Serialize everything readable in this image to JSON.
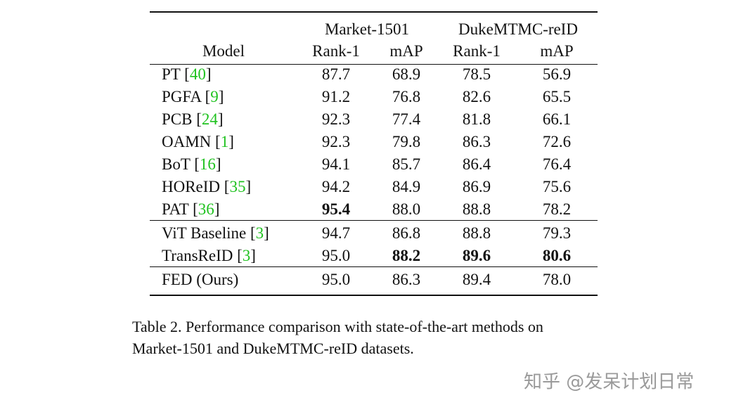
{
  "table": {
    "group_headers": [
      "Market-1501",
      "DukeMTMC-reID"
    ],
    "columns": [
      "Model",
      "Rank-1",
      "mAP",
      "Rank-1",
      "mAP"
    ],
    "groups": [
      {
        "rows": [
          {
            "model": {
              "name": "PT [",
              "ref": "40",
              "end": "]"
            },
            "cells": [
              "87.7",
              "68.9",
              "78.5",
              "56.9"
            ],
            "bold": []
          },
          {
            "model": {
              "name": "PGFA [",
              "ref": "9",
              "end": "]"
            },
            "cells": [
              "91.2",
              "76.8",
              "82.6",
              "65.5"
            ],
            "bold": []
          },
          {
            "model": {
              "name": "PCB [",
              "ref": "24",
              "end": "]"
            },
            "cells": [
              "92.3",
              "77.4",
              "81.8",
              "66.1"
            ],
            "bold": []
          },
          {
            "model": {
              "name": "OAMN [",
              "ref": "1",
              "end": "]"
            },
            "cells": [
              "92.3",
              "79.8",
              "86.3",
              "72.6"
            ],
            "bold": []
          },
          {
            "model": {
              "name": "BoT [",
              "ref": "16",
              "end": "]"
            },
            "cells": [
              "94.1",
              "85.7",
              "86.4",
              "76.4"
            ],
            "bold": []
          },
          {
            "model": {
              "name": "HOReID [",
              "ref": "35",
              "end": "]"
            },
            "cells": [
              "94.2",
              "84.9",
              "86.9",
              "75.6"
            ],
            "bold": []
          },
          {
            "model": {
              "name": "PAT [",
              "ref": "36",
              "end": "]"
            },
            "cells": [
              "95.4",
              "88.0",
              "88.8",
              "78.2"
            ],
            "bold": [
              0
            ]
          }
        ]
      },
      {
        "rows": [
          {
            "model": {
              "name": "ViT Baseline [",
              "ref": "3",
              "end": "]"
            },
            "cells": [
              "94.7",
              "86.8",
              "88.8",
              "79.3"
            ],
            "bold": []
          },
          {
            "model": {
              "name": "TransReID [",
              "ref": "3",
              "end": "]"
            },
            "cells": [
              "95.0",
              "88.2",
              "89.6",
              "80.6"
            ],
            "bold": [
              1,
              2,
              3
            ]
          }
        ]
      },
      {
        "rows": [
          {
            "model": {
              "name": "FED (Ours)"
            },
            "cells": [
              "95.0",
              "86.3",
              "89.4",
              "78.0"
            ],
            "bold": []
          }
        ]
      }
    ]
  },
  "caption": {
    "lines": [
      "Table 2. Performance comparison with state-of-the-art methods on",
      "Market-1501 and DukeMTMC-reID datasets."
    ]
  },
  "watermark": "知乎 @发呆计划日常"
}
